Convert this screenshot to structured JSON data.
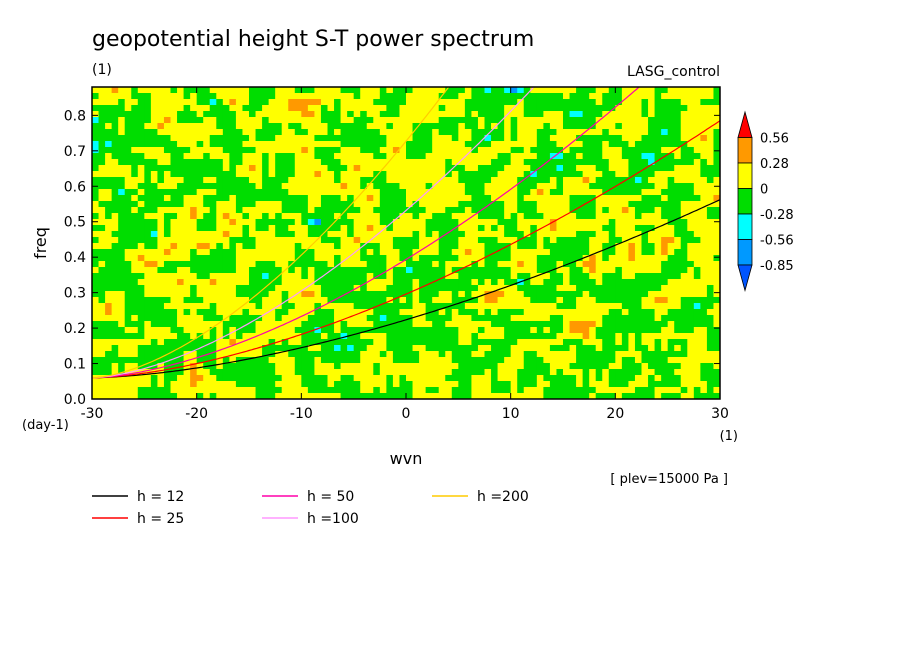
{
  "chart_data": {
    "type": "heatmap",
    "title": "geopotential height S-T power spectrum",
    "units_label": "(1)",
    "dataset_label": "LASG_control",
    "xlabel": "wvn",
    "ylabel": "freq",
    "x_units": "(1)",
    "y_units": "(day-1)",
    "xlim": [
      -30,
      30
    ],
    "ylim": [
      0,
      0.88
    ],
    "x_ticks": [
      "-30",
      "-20",
      "-10",
      "0",
      "10",
      "20",
      "30"
    ],
    "x_tick_values": [
      -30,
      -20,
      -10,
      0,
      10,
      20,
      30
    ],
    "y_ticks": [
      "0.0",
      "0.1",
      "0.2",
      "0.3",
      "0.4",
      "0.5",
      "0.6",
      "0.7",
      "0.8"
    ],
    "y_tick_values": [
      0,
      0.1,
      0.2,
      0.3,
      0.4,
      0.5,
      0.6,
      0.7,
      0.8
    ],
    "note": "[ plev=15000 Pa ]",
    "colorbar": {
      "labels": [
        "0.56",
        "0.28",
        "0",
        "-0.28",
        "-0.56",
        "-0.85"
      ],
      "colors": [
        "#ff0000",
        "#ff9900",
        "#ffff00",
        "#00dd00",
        "#00ffff",
        "#0099ff",
        "#0055ff"
      ]
    },
    "dispersion_curves": [
      {
        "name": "h = 12",
        "color": "#000000",
        "h": 12
      },
      {
        "name": "h = 25",
        "color": "#ff0000",
        "h": 25
      },
      {
        "name": "h = 50",
        "color": "#ff00aa",
        "h": 50
      },
      {
        "name": "h =100",
        "color": "#ff99ff",
        "h": 100
      },
      {
        "name": "h =200",
        "color": "#ffcc00",
        "h": 200
      }
    ]
  }
}
